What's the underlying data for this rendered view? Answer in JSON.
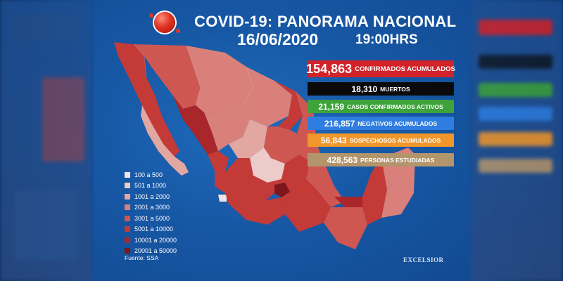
{
  "header": {
    "title": "COVID-19: PANORAMA NACIONAL",
    "date": "16/06/2020",
    "time": "19:00HRS"
  },
  "stats": [
    {
      "number": "154,863",
      "label": "CONFIRMADOS ACUMULADOS",
      "color": "#d2232a"
    },
    {
      "number": "18,310",
      "label": "MUERTOS",
      "color": "#0a0a0a"
    },
    {
      "number": "21,159",
      "label": "CASOS CONFIRMADOS ACTIVOS",
      "color": "#3ea33a"
    },
    {
      "number": "216,857",
      "label": "NEGATIVOS ACUMULADOS",
      "color": "#2f7de0"
    },
    {
      "number": "56,843",
      "label": "SOSPECHOSOS ACUMULADOS",
      "color": "#f1962a"
    },
    {
      "number": "428,563",
      "label": "PERSONAS ESTUDIADAS",
      "color": "#b3956c"
    }
  ],
  "legend": [
    {
      "label": "100 a 500",
      "color": "#f2e4e2"
    },
    {
      "label": "501 a 1000",
      "color": "#eccbc8"
    },
    {
      "label": "1001 a 2000",
      "color": "#e3a7a2"
    },
    {
      "label": "2001 a 3000",
      "color": "#d9807b"
    },
    {
      "label": "3001 a 5000",
      "color": "#cf5752"
    },
    {
      "label": "5001 a 10000",
      "color": "#c43a37"
    },
    {
      "label": "10001 a 20000",
      "color": "#a9262a"
    },
    {
      "label": "20001 a 50000",
      "color": "#7d171c"
    }
  ],
  "source": "Fuente: SSA",
  "brand": "EXCELSIOR"
}
